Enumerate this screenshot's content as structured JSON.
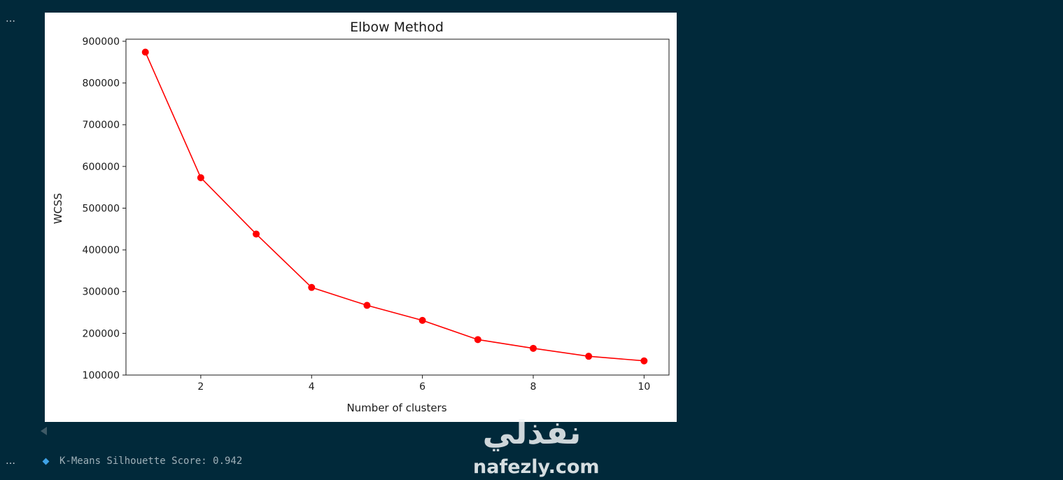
{
  "cells": [
    {
      "menu": "…"
    },
    {
      "menu": "…"
    }
  ],
  "output": {
    "text": "K-Means Silhouette Score: 0.942",
    "bullet_color": "#3fa2e6"
  },
  "watermark": {
    "logo_text": "نفذلي",
    "domain": "nafezly.com"
  },
  "chart_data": {
    "type": "line",
    "title": "Elbow Method",
    "xlabel": "Number of clusters",
    "ylabel": "WCSS",
    "x": [
      1,
      2,
      3,
      4,
      5,
      6,
      7,
      8,
      9,
      10
    ],
    "y": [
      874000,
      573000,
      438000,
      310000,
      267000,
      231000,
      185000,
      164000,
      145000,
      134000
    ],
    "xlim": [
      0.65,
      10.45
    ],
    "ylim": [
      100000,
      905000
    ],
    "xticks": [
      2,
      4,
      6,
      8,
      10
    ],
    "yticks": [
      100000,
      200000,
      300000,
      400000,
      500000,
      600000,
      700000,
      800000,
      900000
    ],
    "marker": "o",
    "color": "#ff0000",
    "grid": false
  }
}
